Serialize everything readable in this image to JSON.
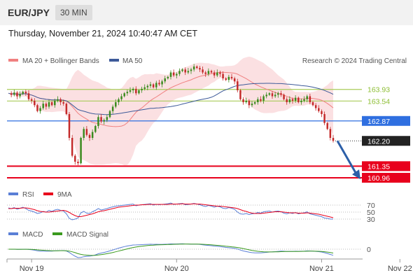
{
  "header": {
    "pair": "EUR/JPY",
    "timeframe": "30 MIN"
  },
  "timestamp": "Thursday, November 21, 2024 10:40:47 AM CET",
  "legend": {
    "ma20": "MA 20 + Bollinger Bands",
    "ma50": "MA 50",
    "rsi": "RSI",
    "rsi_ma": "9MA",
    "macd": "MACD",
    "macd_signal": "MACD Signal"
  },
  "credit": "Research © 2024 Trading Central",
  "colors": {
    "ma20": "#f08080",
    "band": "#fadadd",
    "ma50": "#3d5a99",
    "up": "#3a8a1e",
    "down": "#c42a2a",
    "support": "#e8001c",
    "pivot": "#2f6fe0",
    "resistance": "#a9cc5a",
    "arrow": "#2c5fa8"
  },
  "chart_data": {
    "type": "candlestick",
    "price_axis": {
      "min": 160.7,
      "max": 164.7
    },
    "levels": [
      {
        "value": 163.93,
        "label": "163.93",
        "kind": "resistance"
      },
      {
        "value": 163.54,
        "label": "163.54",
        "kind": "resistance"
      },
      {
        "value": 162.87,
        "label": "162.87",
        "kind": "pivot"
      },
      {
        "value": 162.2,
        "label": "162.20",
        "kind": "last"
      },
      {
        "value": 161.35,
        "label": "161.35",
        "kind": "support"
      },
      {
        "value": 160.96,
        "label": "160.96",
        "kind": "support"
      }
    ],
    "x_labels": [
      "Nov 19",
      "Nov 20",
      "Nov 21",
      "Nov 22"
    ],
    "x_label_index": [
      8,
      58,
      108,
      135
    ],
    "close": [
      163.8,
      163.75,
      163.82,
      163.7,
      163.78,
      163.85,
      163.8,
      163.6,
      163.55,
      163.4,
      163.2,
      163.3,
      163.45,
      163.35,
      163.5,
      163.4,
      163.55,
      163.6,
      163.5,
      163.45,
      163.1,
      162.3,
      161.7,
      161.5,
      161.45,
      162.3,
      162.6,
      162.4,
      162.3,
      162.5,
      162.7,
      163.0,
      162.85,
      162.9,
      163.0,
      163.2,
      163.35,
      163.5,
      163.6,
      163.7,
      163.8,
      163.85,
      163.9,
      163.95,
      163.8,
      163.9,
      163.95,
      164.0,
      164.05,
      164.1,
      164.0,
      164.15,
      164.1,
      164.2,
      164.3,
      164.35,
      164.5,
      164.4,
      164.45,
      164.55,
      164.6,
      164.5,
      164.55,
      164.6,
      164.7,
      164.65,
      164.6,
      164.5,
      164.45,
      164.55,
      164.5,
      164.4,
      164.5,
      164.45,
      164.3,
      164.25,
      164.35,
      164.3,
      164.2,
      163.9,
      163.6,
      163.5,
      163.55,
      163.4,
      163.45,
      163.5,
      163.6,
      163.55,
      163.7,
      163.75,
      163.8,
      163.7,
      163.75,
      163.8,
      163.75,
      163.6,
      163.5,
      163.6,
      163.55,
      163.65,
      163.5,
      163.55,
      163.6,
      163.7,
      163.5,
      163.4,
      163.3,
      163.2,
      163.1,
      162.8,
      162.6,
      162.3,
      162.2
    ],
    "rsi_levels": [
      70,
      50,
      30
    ],
    "rsi": [
      62,
      60,
      63,
      58,
      61,
      64,
      60,
      55,
      53,
      50,
      46,
      48,
      52,
      50,
      55,
      52,
      56,
      58,
      55,
      53,
      45,
      32,
      28,
      30,
      33,
      48,
      52,
      47,
      46,
      51,
      55,
      60,
      56,
      58,
      60,
      63,
      65,
      67,
      68,
      69,
      70,
      71,
      72,
      73,
      68,
      70,
      71,
      72,
      73,
      74,
      70,
      72,
      71,
      72,
      73,
      74,
      76,
      72,
      73,
      74,
      75,
      71,
      72,
      73,
      75,
      73,
      71,
      68,
      66,
      69,
      67,
      64,
      67,
      65,
      61,
      60,
      63,
      61,
      58,
      50,
      45,
      44,
      46,
      43,
      45,
      46,
      49,
      47,
      51,
      52,
      53,
      50,
      52,
      53,
      51,
      47,
      45,
      48,
      46,
      49,
      45,
      47,
      48,
      51,
      45,
      43,
      41,
      39,
      37,
      33,
      32,
      30,
      30
    ],
    "rsi_ma": [
      60,
      60,
      61,
      61,
      61,
      62,
      62,
      61,
      59,
      57,
      54,
      52,
      51,
      50,
      50,
      51,
      52,
      53,
      54,
      55,
      53,
      49,
      44,
      40,
      37,
      37,
      39,
      41,
      43,
      45,
      48,
      51,
      53,
      54,
      56,
      58,
      60,
      62,
      64,
      65,
      66,
      67,
      68,
      69,
      70,
      70,
      71,
      71,
      72,
      72,
      72,
      72,
      72,
      72,
      72,
      72,
      73,
      73,
      73,
      73,
      74,
      73,
      73,
      73,
      74,
      73,
      73,
      72,
      71,
      70,
      69,
      68,
      67,
      67,
      66,
      65,
      64,
      63,
      62,
      60,
      57,
      54,
      52,
      49,
      47,
      46,
      46,
      46,
      47,
      48,
      49,
      50,
      51,
      51,
      51,
      50,
      49,
      48,
      48,
      48,
      47,
      47,
      47,
      48,
      47,
      46,
      45,
      44,
      42,
      40,
      38,
      36,
      34
    ],
    "macd_zero": 0
  }
}
